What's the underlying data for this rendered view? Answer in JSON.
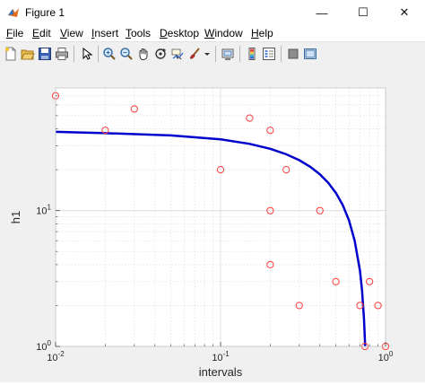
{
  "window": {
    "title": "Figure 1",
    "controls": {
      "minimize": "—",
      "maximize": "☐",
      "close": "✕"
    }
  },
  "menu": [
    {
      "key": "F",
      "rest": "ile"
    },
    {
      "key": "E",
      "rest": "dit"
    },
    {
      "key": "V",
      "rest": "iew"
    },
    {
      "key": "I",
      "rest": "nsert"
    },
    {
      "key": "T",
      "rest": "ools"
    },
    {
      "key": "D",
      "rest": "esktop"
    },
    {
      "key": "W",
      "rest": "indow"
    },
    {
      "key": "H",
      "rest": "elp"
    }
  ],
  "toolbar_icons": [
    "new-figure-icon",
    "open-file-icon",
    "save-icon",
    "print-icon",
    "pointer-icon",
    "zoom-in-icon",
    "zoom-out-icon",
    "pan-icon",
    "rotate-3d-icon",
    "data-cursor-icon",
    "brush-icon",
    "brush-dropdown-icon",
    "link-plot-icon",
    "insert-colorbar-icon",
    "insert-legend-icon",
    "hide-plot-tools-icon",
    "show-plot-tools-icon"
  ],
  "colors": {
    "scatter": "#ff3b3b",
    "curve": "#0000cc",
    "grid": "#d9d9d9",
    "axes_bg": "#ffffff",
    "figure_bg": "#f0f0f0"
  },
  "chart_data": {
    "type": "scatter",
    "xlabel": "intervals",
    "ylabel": "h1",
    "xscale": "log",
    "yscale": "log",
    "xlim": [
      0.01,
      1
    ],
    "ylim": [
      1,
      80
    ],
    "grid": true,
    "minor_grid": true,
    "x_ticks": [
      {
        "base": "10",
        "exp": "-2",
        "value": 0.01
      },
      {
        "base": "10",
        "exp": "-1",
        "value": 0.1
      },
      {
        "base": "10",
        "exp": "0",
        "value": 1
      }
    ],
    "y_ticks": [
      {
        "base": "10",
        "exp": "0",
        "value": 1
      },
      {
        "base": "10",
        "exp": "1",
        "value": 10
      }
    ],
    "series": [
      {
        "kind": "scatter",
        "marker": "circle",
        "points": [
          [
            0.01,
            70
          ],
          [
            0.02,
            39
          ],
          [
            0.03,
            56
          ],
          [
            0.1,
            20
          ],
          [
            0.15,
            48
          ],
          [
            0.2,
            39
          ],
          [
            0.2,
            10
          ],
          [
            0.2,
            4
          ],
          [
            0.25,
            20
          ],
          [
            0.3,
            2
          ],
          [
            0.4,
            10
          ],
          [
            0.5,
            3
          ],
          [
            0.7,
            2
          ],
          [
            0.75,
            1
          ],
          [
            0.8,
            3
          ],
          [
            0.9,
            2
          ],
          [
            1.0,
            1
          ]
        ]
      },
      {
        "kind": "line",
        "points": [
          [
            0.01,
            38
          ],
          [
            0.02,
            37.2
          ],
          [
            0.05,
            35.8
          ],
          [
            0.1,
            33.5
          ],
          [
            0.15,
            31
          ],
          [
            0.2,
            28.5
          ],
          [
            0.25,
            26
          ],
          [
            0.3,
            23.5
          ],
          [
            0.35,
            21
          ],
          [
            0.4,
            18.5
          ],
          [
            0.45,
            16
          ],
          [
            0.5,
            13.5
          ],
          [
            0.55,
            11
          ],
          [
            0.6,
            8.5
          ],
          [
            0.65,
            6
          ],
          [
            0.7,
            3.6
          ],
          [
            0.72,
            2.6
          ],
          [
            0.74,
            1.6
          ],
          [
            0.75,
            1.1
          ],
          [
            0.752,
            1.0
          ]
        ]
      }
    ]
  }
}
